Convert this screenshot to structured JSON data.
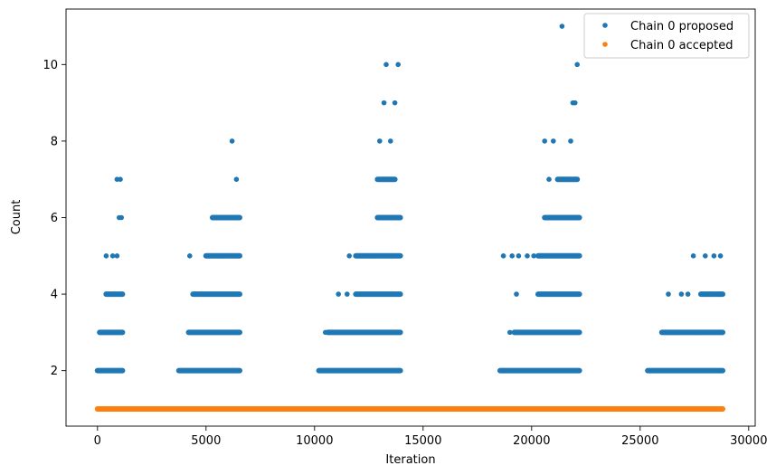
{
  "chart_data": {
    "type": "scatter",
    "xlabel": "Iteration",
    "ylabel": "Count",
    "xlim": [
      -1450,
      30300
    ],
    "ylim": [
      0.55,
      11.45
    ],
    "xticks": [
      0,
      5000,
      10000,
      15000,
      20000,
      25000,
      30000
    ],
    "xtick_labels": [
      "0",
      "5000",
      "10000",
      "15000",
      "20000",
      "25000",
      "30000"
    ],
    "yticks": [
      2,
      4,
      6,
      8,
      10
    ],
    "ytick_labels": [
      "2",
      "4",
      "6",
      "8",
      "10"
    ],
    "grid": false,
    "legend_position": "top-right",
    "series": [
      {
        "name": "Chain 0 proposed",
        "color": "#1f77b4",
        "marker": "dot",
        "runs": [
          {
            "y": 2,
            "x": [
              0,
              1150
            ]
          },
          {
            "y": 2,
            "x": [
              3750,
              6550
            ]
          },
          {
            "y": 2,
            "x": [
              10200,
              13950
            ]
          },
          {
            "y": 2,
            "x": [
              18550,
              22200
            ]
          },
          {
            "y": 2,
            "x": [
              25350,
              28800
            ]
          },
          {
            "y": 3,
            "x": [
              100,
              1150
            ]
          },
          {
            "y": 3,
            "x": [
              4200,
              6550
            ]
          },
          {
            "y": 3,
            "x": [
              10600,
              13950
            ]
          },
          {
            "y": 3,
            "x": [
              19200,
              22200
            ]
          },
          {
            "y": 3,
            "x": [
              26000,
              28800
            ]
          },
          {
            "y": 4,
            "x": [
              400,
              1150
            ]
          },
          {
            "y": 4,
            "x": [
              4400,
              6550
            ]
          },
          {
            "y": 4,
            "x": [
              11900,
              13950
            ]
          },
          {
            "y": 4,
            "x": [
              20300,
              22200
            ]
          },
          {
            "y": 4,
            "x": [
              27800,
              28800
            ]
          },
          {
            "y": 5,
            "x": [
              5000,
              6550
            ]
          },
          {
            "y": 5,
            "x": [
              11900,
              13950
            ]
          },
          {
            "y": 5,
            "x": [
              20300,
              22200
            ]
          },
          {
            "y": 6,
            "x": [
              5300,
              6550
            ]
          },
          {
            "y": 6,
            "x": [
              12900,
              13950
            ]
          },
          {
            "y": 6,
            "x": [
              20600,
              22200
            ]
          },
          {
            "y": 7,
            "x": [
              12900,
              13700
            ]
          },
          {
            "y": 7,
            "x": [
              21200,
              22100
            ]
          }
        ],
        "points": [
          [
            100,
            2
          ],
          [
            100,
            3
          ],
          [
            400,
            4
          ],
          [
            400,
            5
          ],
          [
            700,
            5
          ],
          [
            900,
            5
          ],
          [
            1000,
            6
          ],
          [
            1100,
            6
          ],
          [
            900,
            7
          ],
          [
            1050,
            7
          ],
          [
            3750,
            2
          ],
          [
            4200,
            3
          ],
          [
            4250,
            5
          ],
          [
            4500,
            4
          ],
          [
            4800,
            4
          ],
          [
            5000,
            5
          ],
          [
            5300,
            6
          ],
          [
            5600,
            6
          ],
          [
            5800,
            5
          ],
          [
            6000,
            6
          ],
          [
            6200,
            8
          ],
          [
            6400,
            7
          ],
          [
            6100,
            6
          ],
          [
            6500,
            6
          ],
          [
            10250,
            2
          ],
          [
            10500,
            3
          ],
          [
            11100,
            4
          ],
          [
            11500,
            4
          ],
          [
            11600,
            5
          ],
          [
            12200,
            5
          ],
          [
            12600,
            5
          ],
          [
            12900,
            6
          ],
          [
            13000,
            8
          ],
          [
            13200,
            9
          ],
          [
            13300,
            10
          ],
          [
            13500,
            8
          ],
          [
            13700,
            9
          ],
          [
            13850,
            10
          ],
          [
            13400,
            7
          ],
          [
            13600,
            6
          ],
          [
            18550,
            2
          ],
          [
            19000,
            3
          ],
          [
            18700,
            5
          ],
          [
            19100,
            5
          ],
          [
            19300,
            4
          ],
          [
            19400,
            5
          ],
          [
            19800,
            5
          ],
          [
            20100,
            5
          ],
          [
            20400,
            5
          ],
          [
            20600,
            8
          ],
          [
            20700,
            6
          ],
          [
            20800,
            7
          ],
          [
            21000,
            8
          ],
          [
            21200,
            6
          ],
          [
            21400,
            11
          ],
          [
            21500,
            7
          ],
          [
            21600,
            6
          ],
          [
            21800,
            8
          ],
          [
            21900,
            9
          ],
          [
            22000,
            9
          ],
          [
            22100,
            10
          ],
          [
            22000,
            7
          ],
          [
            22150,
            5
          ],
          [
            25350,
            2
          ],
          [
            25600,
            2
          ],
          [
            26200,
            3
          ],
          [
            26300,
            4
          ],
          [
            26600,
            3
          ],
          [
            26900,
            4
          ],
          [
            27200,
            4
          ],
          [
            27450,
            5
          ],
          [
            27600,
            3
          ],
          [
            27800,
            4
          ],
          [
            28000,
            5
          ],
          [
            28200,
            4
          ],
          [
            28400,
            5
          ],
          [
            28600,
            4
          ],
          [
            28700,
            5
          ],
          [
            28800,
            3
          ]
        ]
      },
      {
        "name": "Chain 0 accepted",
        "color": "#ff7f0e",
        "marker": "dot",
        "runs": [
          {
            "y": 1,
            "x": [
              0,
              28800
            ]
          }
        ],
        "points": []
      }
    ]
  }
}
